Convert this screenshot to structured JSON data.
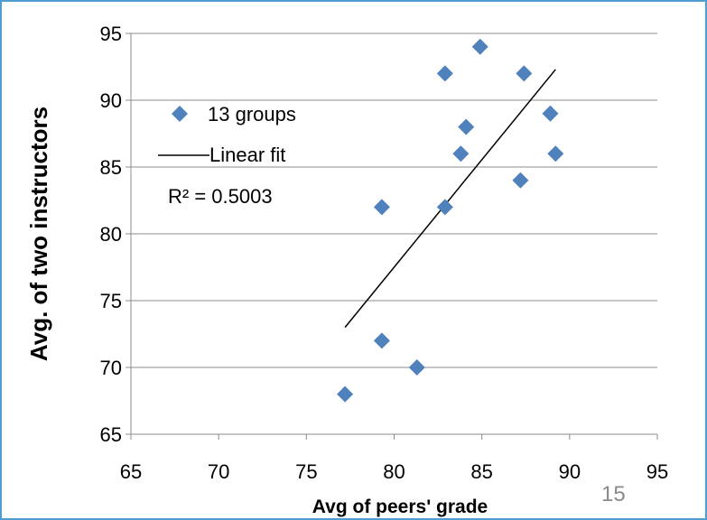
{
  "slide_number": "15",
  "chart_data": {
    "type": "scatter",
    "xlabel": "Avg of peers' grade",
    "ylabel": "Avg. of two instructors",
    "xlim": [
      65,
      95
    ],
    "ylim": [
      65,
      95
    ],
    "x_ticks": [
      65,
      70,
      75,
      80,
      85,
      90,
      95
    ],
    "y_ticks": [
      65,
      70,
      75,
      80,
      85,
      90,
      95
    ],
    "grid": "horizontal",
    "legend_placement": "top-left",
    "series": [
      {
        "name": "13 groups",
        "marker": "diamond",
        "color": "#4f81bd",
        "points": [
          {
            "x": 77.2,
            "y": 68
          },
          {
            "x": 79.3,
            "y": 72
          },
          {
            "x": 79.3,
            "y": 82
          },
          {
            "x": 81.3,
            "y": 70
          },
          {
            "x": 82.9,
            "y": 92
          },
          {
            "x": 82.9,
            "y": 82
          },
          {
            "x": 83.8,
            "y": 86
          },
          {
            "x": 84.1,
            "y": 88
          },
          {
            "x": 84.9,
            "y": 94
          },
          {
            "x": 87.2,
            "y": 84
          },
          {
            "x": 87.4,
            "y": 92
          },
          {
            "x": 88.9,
            "y": 89
          },
          {
            "x": 89.2,
            "y": 86
          }
        ]
      }
    ],
    "trendline": {
      "name": "Linear fit",
      "color": "#000000",
      "from": {
        "x": 77.2,
        "y": 73
      },
      "to": {
        "x": 89.2,
        "y": 92.3
      }
    },
    "annotation": "R² = 0.5003"
  }
}
